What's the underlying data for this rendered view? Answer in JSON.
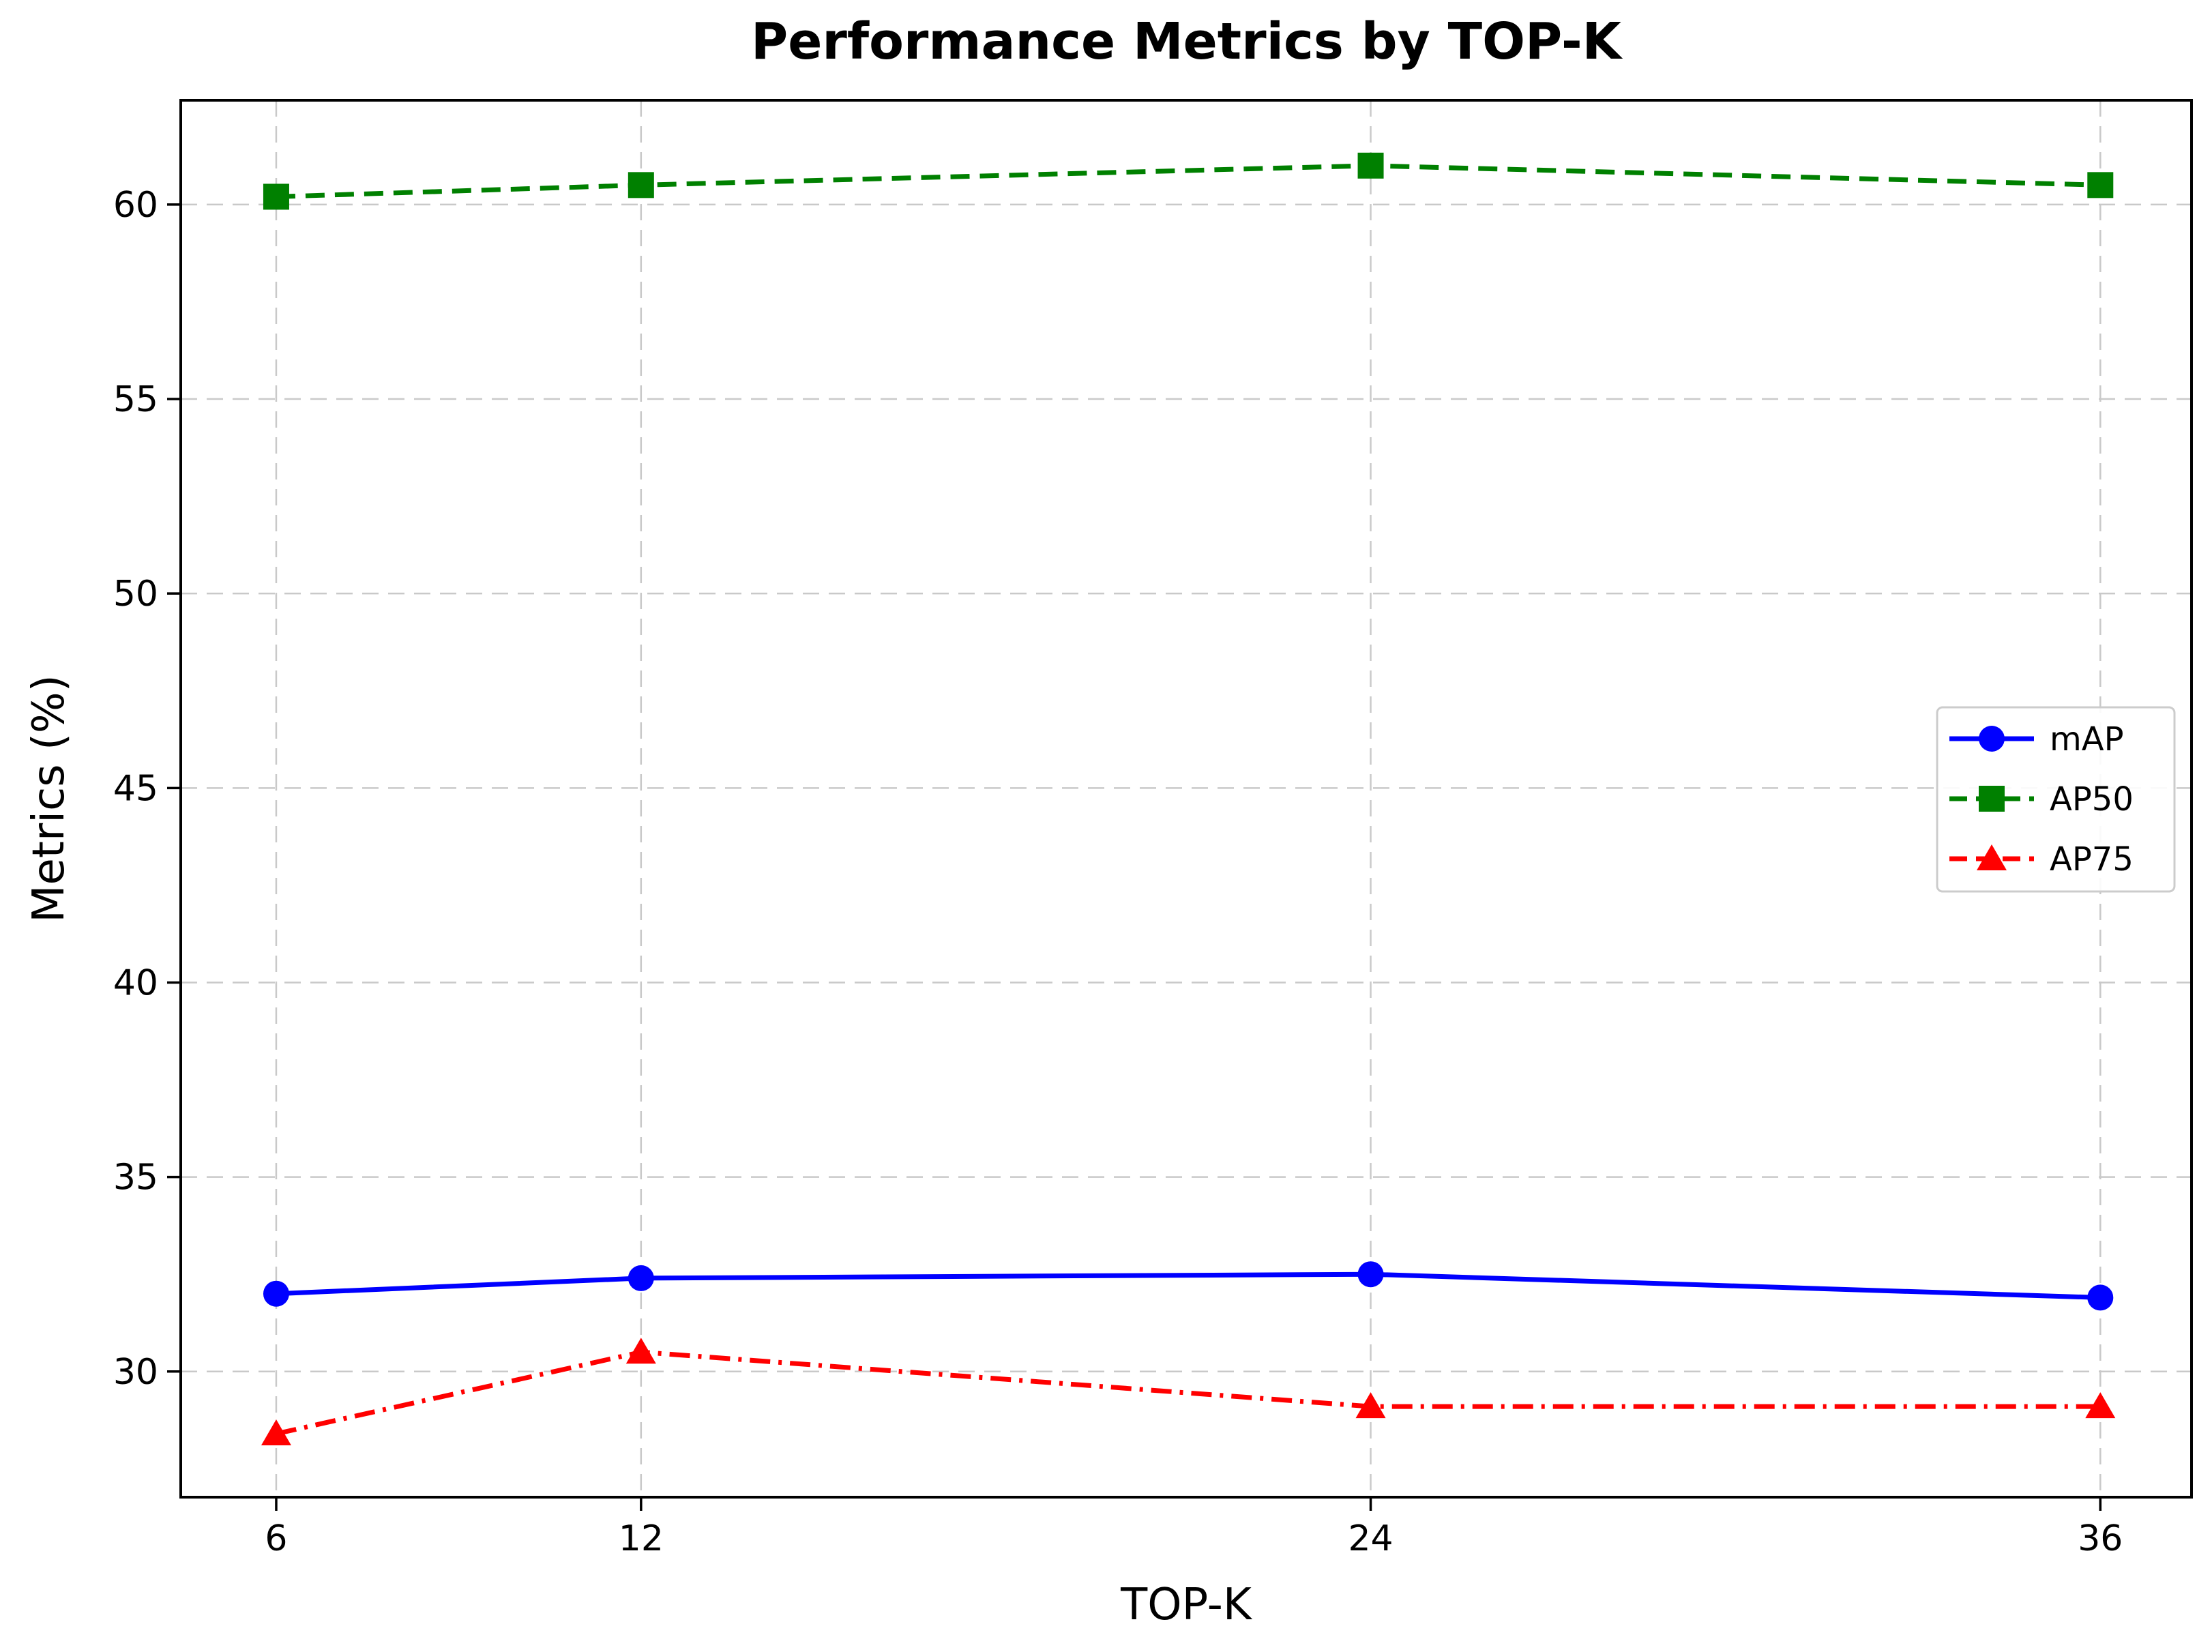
{
  "chart_data": {
    "type": "line",
    "title": "Performance Metrics by TOP-K",
    "xlabel": "TOP-K",
    "ylabel": "Metrics (%)",
    "x": [
      6,
      12,
      24,
      36
    ],
    "x_tick_labels": [
      "6",
      "12",
      "24",
      "36"
    ],
    "y_ticks": [
      30,
      35,
      40,
      45,
      50,
      55,
      60
    ],
    "y_tick_labels": [
      "30",
      "35",
      "40",
      "45",
      "50",
      "55",
      "60"
    ],
    "xlim": [
      4.43,
      37.5
    ],
    "ylim": [
      26.77,
      62.68
    ],
    "grid": true,
    "grid_style": "dashed",
    "legend_position": "center-right-inside",
    "series": [
      {
        "name": "mAP",
        "values": [
          32.0,
          32.4,
          32.5,
          31.9
        ],
        "color": "#0000ff",
        "linestyle": "solid",
        "marker": "circle"
      },
      {
        "name": "AP50",
        "values": [
          60.2,
          60.5,
          61.0,
          60.5
        ],
        "color": "#008000",
        "linestyle": "dashed",
        "marker": "square"
      },
      {
        "name": "AP75",
        "values": [
          28.4,
          30.5,
          29.1,
          29.1
        ],
        "color": "#ff0000",
        "linestyle": "dashdot",
        "marker": "triangle"
      }
    ],
    "colors": {
      "background": "#ffffff",
      "grid": "#c9c9c9",
      "axis": "#000000",
      "text": "#000000",
      "legend_border": "#cccccc"
    }
  }
}
